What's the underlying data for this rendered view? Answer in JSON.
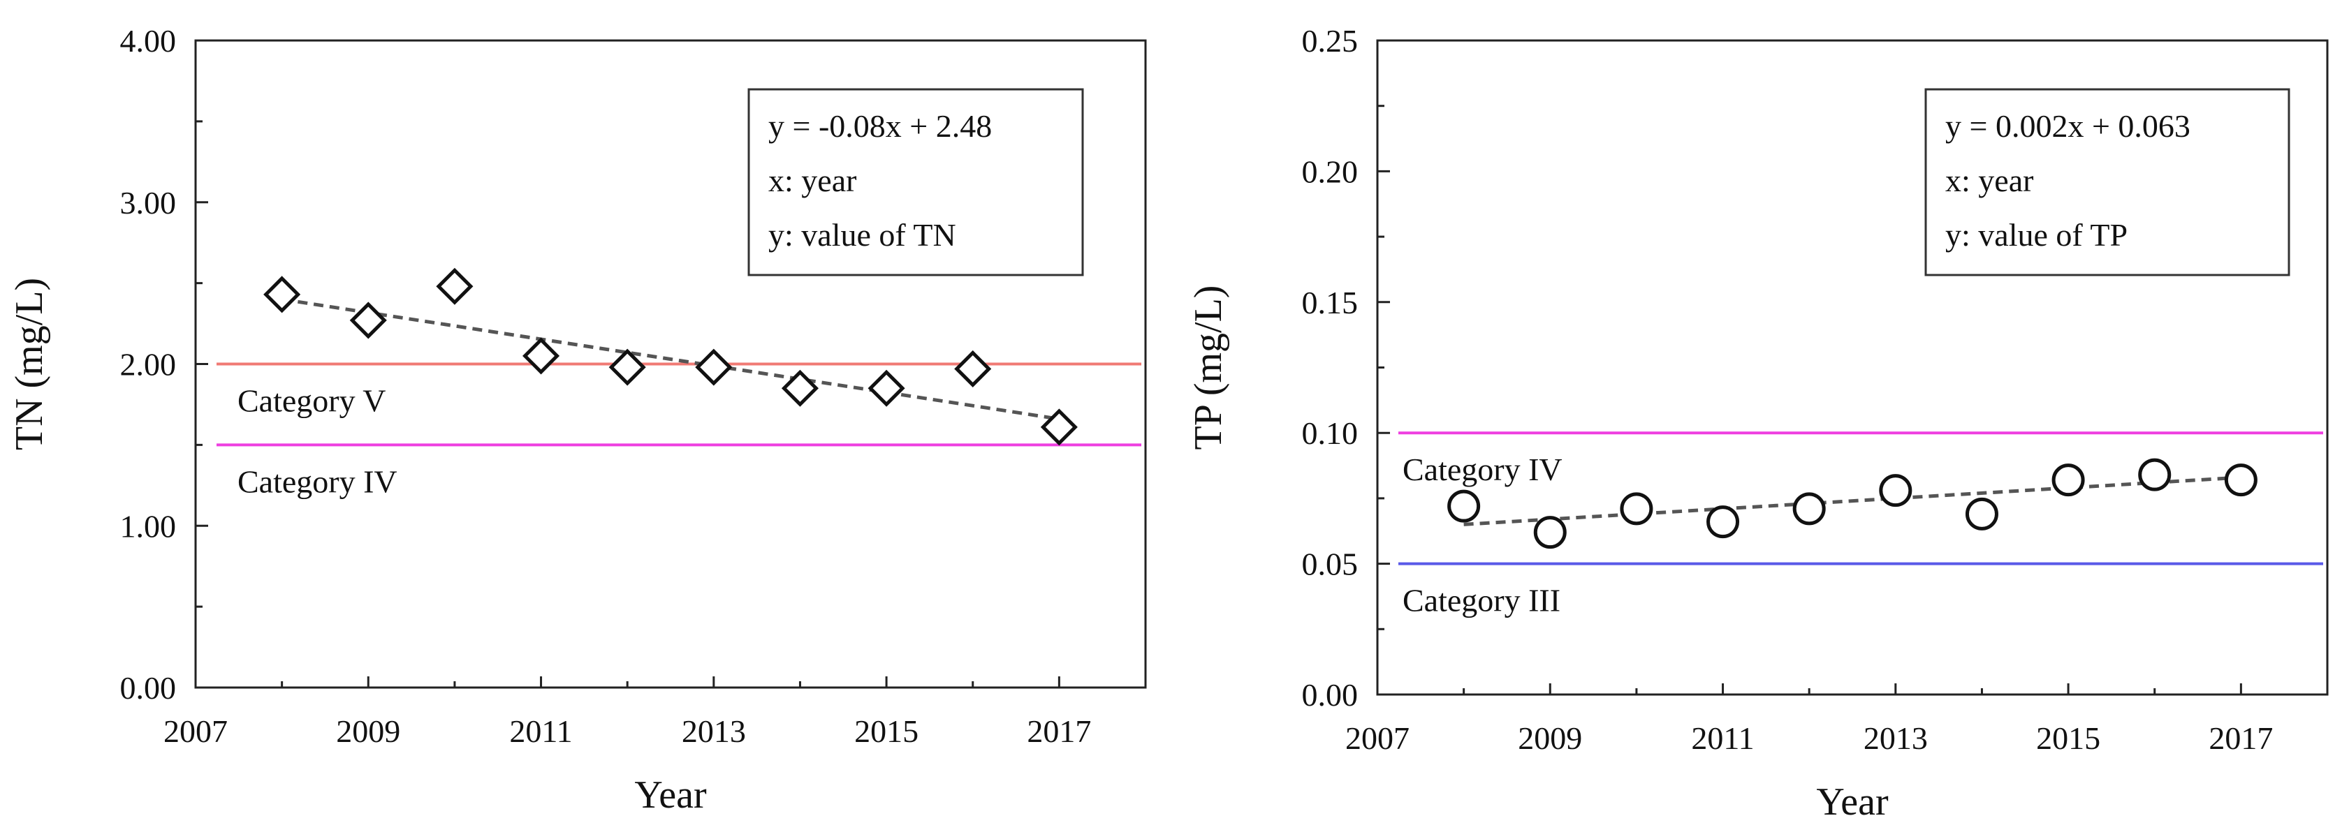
{
  "chart_data": [
    {
      "type": "scatter",
      "id": "tn",
      "xlabel": "Year",
      "ylabel": "TN (mg/L)",
      "xlim": [
        2007,
        2018
      ],
      "ylim": [
        0,
        4
      ],
      "x_ticks": [
        2007,
        2009,
        2011,
        2013,
        2015,
        2017
      ],
      "x_tick_labels": [
        "2007",
        "2009",
        "2011",
        "2013",
        "2015",
        "2017"
      ],
      "y_ticks": [
        0,
        1,
        2,
        3,
        4
      ],
      "y_tick_labels": [
        "0.00",
        "1.00",
        "2.00",
        "3.00",
        "4.00"
      ],
      "y_minor_ticks": [
        0.5,
        1.5,
        2.5,
        3.5
      ],
      "marker": "diamond",
      "series": [
        {
          "name": "TN",
          "x": [
            2008,
            2009,
            2010,
            2011,
            2012,
            2013,
            2014,
            2015,
            2016,
            2017
          ],
          "y": [
            2.43,
            2.27,
            2.48,
            2.05,
            1.98,
            1.98,
            1.85,
            1.85,
            1.97,
            1.61
          ]
        }
      ],
      "trendline": {
        "x": [
          2008,
          2017
        ],
        "y": [
          2.4,
          1.66
        ],
        "style": "dashed",
        "color": "#555555"
      },
      "equation_box": {
        "position": "top-right",
        "lines": [
          "y = -0.08x + 2.48",
          "x: year",
          "y: value of TN"
        ]
      },
      "reference_lines": [
        {
          "y": 2.0,
          "label": "Category V",
          "color": "#f07a74",
          "label_side": "below"
        },
        {
          "y": 1.5,
          "label": "Category IV",
          "color": "#ee3ee0",
          "label_side": "below"
        }
      ]
    },
    {
      "type": "scatter",
      "id": "tp",
      "xlabel": "Year",
      "ylabel": "TP (mg/L)",
      "xlim": [
        2007,
        2018
      ],
      "ylim": [
        0,
        0.25
      ],
      "x_ticks": [
        2007,
        2009,
        2011,
        2013,
        2015,
        2017
      ],
      "x_tick_labels": [
        "2007",
        "2009",
        "2011",
        "2013",
        "2015",
        "2017"
      ],
      "y_ticks": [
        0,
        0.05,
        0.1,
        0.15,
        0.2,
        0.25
      ],
      "y_tick_labels": [
        "0.00",
        "0.05",
        "0.10",
        "0.15",
        "0.20",
        "0.25"
      ],
      "y_minor_ticks": [
        0.025,
        0.075,
        0.125,
        0.175,
        0.225
      ],
      "marker": "circle",
      "series": [
        {
          "name": "TP",
          "x": [
            2008,
            2009,
            2010,
            2011,
            2012,
            2013,
            2014,
            2015,
            2016,
            2017
          ],
          "y": [
            0.072,
            0.062,
            0.071,
            0.066,
            0.071,
            0.078,
            0.069,
            0.082,
            0.084,
            0.082
          ]
        }
      ],
      "trendline": {
        "x": [
          2008,
          2017
        ],
        "y": [
          0.065,
          0.083
        ],
        "style": "dashed",
        "color": "#555555"
      },
      "equation_box": {
        "position": "top-right",
        "lines": [
          "y = 0.002x + 0.063",
          "x: year",
          "y: value of TP"
        ]
      },
      "reference_lines": [
        {
          "y": 0.1,
          "label": "Category IV",
          "color": "#ee3ee0",
          "label_side": "below"
        },
        {
          "y": 0.05,
          "label": "Category III",
          "color": "#5a5ae8",
          "label_side": "below"
        }
      ]
    }
  ]
}
